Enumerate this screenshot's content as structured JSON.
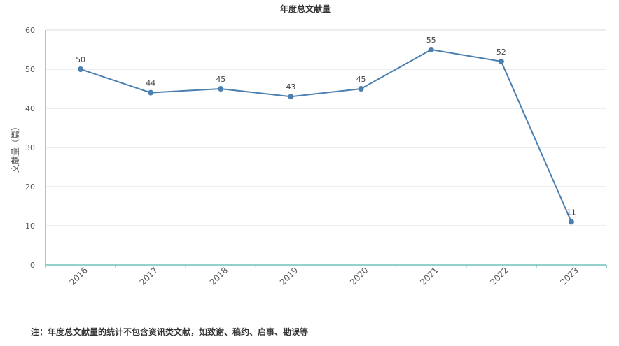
{
  "chart_data": {
    "type": "line",
    "title": "年度总文献量",
    "xlabel": "",
    "ylabel": "文献量（篇）",
    "categories": [
      "2016",
      "2017",
      "2018",
      "2019",
      "2020",
      "2021",
      "2022",
      "2023"
    ],
    "values": [
      50,
      44,
      45,
      43,
      45,
      55,
      52,
      11
    ],
    "ylim": [
      0,
      60
    ],
    "yticks": [
      "0",
      "10",
      "20",
      "30",
      "40",
      "50",
      "60"
    ],
    "grid": true,
    "line_color": "#4a7fb0",
    "axis_color": "#2aa19a"
  },
  "footnote": "注：年度总文献量的统计不包含资讯类文献，如致谢、稿约、启事、勘误等"
}
